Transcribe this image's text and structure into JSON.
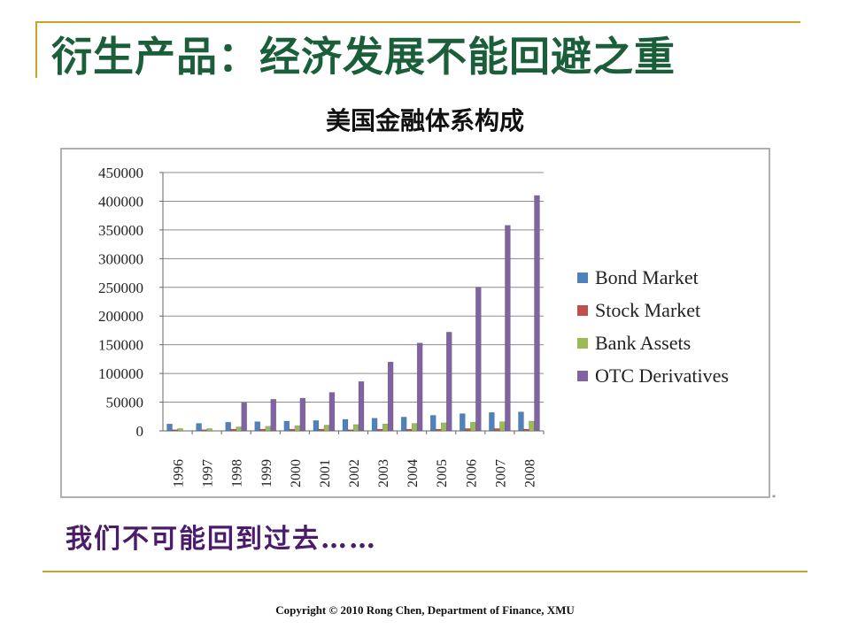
{
  "slide": {
    "title": "衍生产品：经济发展不能回避之重",
    "subtext": "我们不可能回到过去……",
    "copyright": "Copyright © 2010 Rong Chen, Department of Finance,  XMU",
    "mark": "*"
  },
  "colors": {
    "rule": "#c9a227",
    "title": "#1b5e3a",
    "subtext": "#4a1c6b"
  },
  "chart_data": {
    "type": "bar",
    "title": "美国金融体系构成",
    "categories": [
      "1996",
      "1997",
      "1998",
      "1999",
      "2000",
      "2001",
      "2002",
      "2003",
      "2004",
      "2005",
      "2006",
      "2007",
      "2008"
    ],
    "ylim": [
      0,
      450000
    ],
    "yticks": [
      0,
      50000,
      100000,
      150000,
      200000,
      250000,
      300000,
      350000,
      400000,
      450000
    ],
    "grid": true,
    "legend_position": "right",
    "series": [
      {
        "name": "Bond Market",
        "color": "#4f81bd",
        "values": [
          12000,
          13000,
          15000,
          16000,
          17000,
          18000,
          20000,
          22000,
          24000,
          27000,
          30000,
          32000,
          33000
        ]
      },
      {
        "name": "Stock Market",
        "color": "#c0504d",
        "values": [
          2000,
          2000,
          3000,
          3000,
          3000,
          3000,
          2000,
          3000,
          3000,
          3000,
          4000,
          4000,
          3000
        ]
      },
      {
        "name": "Bank Assets",
        "color": "#9bbb59",
        "values": [
          4000,
          4000,
          7000,
          8000,
          9000,
          10000,
          11000,
          12000,
          13000,
          14000,
          15000,
          16000,
          17000
        ]
      },
      {
        "name": "OTC Derivatives",
        "color": "#8064a2",
        "values": [
          0,
          0,
          49000,
          55000,
          57000,
          67000,
          86000,
          120000,
          153000,
          172000,
          250000,
          358000,
          410000
        ]
      }
    ]
  }
}
